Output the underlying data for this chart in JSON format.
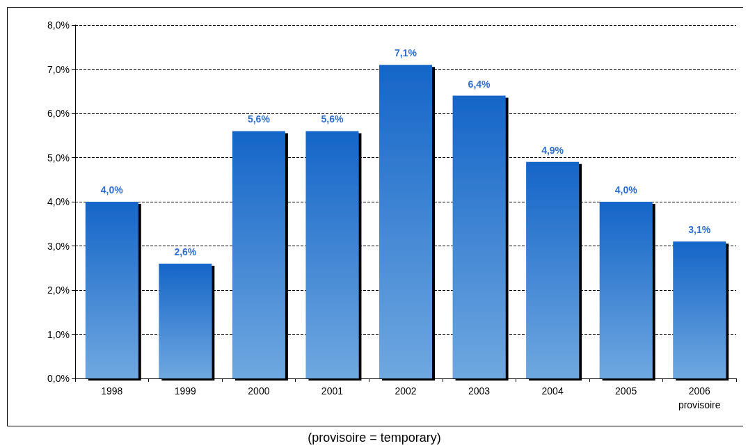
{
  "chart_data": {
    "type": "bar",
    "categories": [
      "1998",
      "1999",
      "2000",
      "2001",
      "2002",
      "2003",
      "2004",
      "2005",
      "2006\nprovisoire"
    ],
    "values": [
      4.0,
      2.6,
      5.6,
      5.6,
      7.1,
      6.4,
      4.9,
      4.0,
      3.1
    ],
    "value_labels": [
      "4,0%",
      "2,6%",
      "5,6%",
      "5,6%",
      "7,1%",
      "6,4%",
      "4,9%",
      "4,0%",
      "3,1%"
    ],
    "color": "#1565c8",
    "ylim": [
      0,
      8
    ],
    "yticks": [
      {
        "value": 0,
        "label": "0,0%"
      },
      {
        "value": 1,
        "label": "1,0%"
      },
      {
        "value": 2,
        "label": "2,0%"
      },
      {
        "value": 3,
        "label": "3,0%"
      },
      {
        "value": 4,
        "label": "4,0%"
      },
      {
        "value": 5,
        "label": "5,0%"
      },
      {
        "value": 6,
        "label": "6,0%"
      },
      {
        "value": 7,
        "label": "7,0%"
      },
      {
        "value": 8,
        "label": "8,0%"
      }
    ],
    "grid": "y",
    "line_style": "dashed",
    "annotations": [
      "(provisoire = temporary)"
    ]
  }
}
